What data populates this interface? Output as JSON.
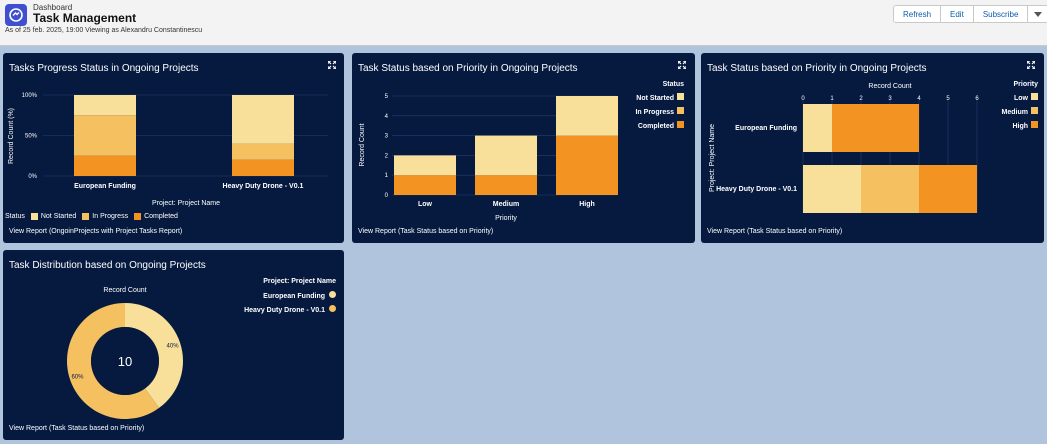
{
  "header": {
    "breadcrumb": "Dashboard",
    "title": "Task Management",
    "as_of": "As of 25 feb. 2025, 19:00 Viewing as Alexandru Constantinescu",
    "buttons": {
      "refresh": "Refresh",
      "edit": "Edit",
      "subscribe": "Subscribe"
    }
  },
  "colors": {
    "not_started": "#f8df9a",
    "in_progress": "#f5c060",
    "completed": "#f39321",
    "panel_bg": "#061a40",
    "page_bg": "#b0c4de"
  },
  "panels": {
    "p1": {
      "title": "Tasks Progress Status in Ongoing Projects",
      "legend_title": "Status",
      "legend": [
        "Not Started",
        "In Progress",
        "Completed"
      ],
      "link": "View Report (OngoinProjects with Project Tasks Report)"
    },
    "p2": {
      "title": "Task Status based on Priority in Ongoing Projects",
      "legend_title": "Status",
      "legend": [
        "Not Started",
        "In Progress",
        "Completed"
      ],
      "link": "View Report (Task Status based on Priority)"
    },
    "p3": {
      "title": "Task Status based on Priority in Ongoing Projects",
      "legend_title": "Priority",
      "legend": [
        "Low",
        "Medium",
        "High"
      ],
      "link": "View Report (Task Status based on Priority)"
    },
    "p4": {
      "title": "Task Distribution based on Ongoing Projects",
      "legend_title": "Project: Project Name",
      "legend": [
        "European Funding",
        "Heavy Duty Drone - V0.1"
      ],
      "link": "View Report (Task Status based on Priority)"
    }
  },
  "chart_data": [
    {
      "type": "bar",
      "orientation": "vertical",
      "stacked": "percent",
      "title": "Tasks Progress Status in Ongoing Projects",
      "categories": [
        "European Funding",
        "Heavy Duty Drone - V0.1"
      ],
      "series": [
        {
          "name": "Completed",
          "values": [
            25,
            20
          ]
        },
        {
          "name": "In Progress",
          "values": [
            50,
            20
          ]
        },
        {
          "name": "Not Started",
          "values": [
            25,
            60
          ]
        }
      ],
      "xlabel": "Project: Project Name",
      "ylabel": "Record Count (%)",
      "yticks": [
        "0%",
        "50%",
        "100%"
      ],
      "ylim": [
        0,
        100
      ]
    },
    {
      "type": "bar",
      "orientation": "vertical",
      "stacked": true,
      "title": "Task Status based on Priority in Ongoing Projects",
      "categories": [
        "Low",
        "Medium",
        "High"
      ],
      "series": [
        {
          "name": "Completed",
          "values": [
            1,
            1,
            3
          ]
        },
        {
          "name": "In Progress",
          "values": [
            0,
            0,
            0
          ]
        },
        {
          "name": "Not Started",
          "values": [
            1,
            2,
            2
          ]
        }
      ],
      "xlabel": "Priority",
      "ylabel": "Record Count",
      "yticks": [
        "0",
        "1",
        "2",
        "3",
        "4",
        "5"
      ],
      "ylim": [
        0,
        5
      ]
    },
    {
      "type": "bar",
      "orientation": "horizontal",
      "stacked": true,
      "title": "Task Status based on Priority in Ongoing Projects",
      "categories": [
        "European Funding",
        "Heavy Duty Drone - V0.1"
      ],
      "series": [
        {
          "name": "Low",
          "values": [
            1,
            2
          ]
        },
        {
          "name": "Medium",
          "values": [
            0,
            2
          ]
        },
        {
          "name": "High",
          "values": [
            3,
            2
          ]
        }
      ],
      "xlabel": "Record Count",
      "ylabel": "Project: Project Name",
      "xticks": [
        "0",
        "1",
        "2",
        "3",
        "4",
        "5",
        "6"
      ],
      "xlim": [
        0,
        6
      ]
    },
    {
      "type": "pie",
      "donut": true,
      "title": "Task Distribution based on Ongoing Projects",
      "center_label": "Record Count",
      "total": "10",
      "slices": [
        {
          "name": "European Funding",
          "value": 40,
          "label": "40%"
        },
        {
          "name": "Heavy Duty Drone - V0.1",
          "value": 60,
          "label": "60%"
        }
      ]
    }
  ]
}
